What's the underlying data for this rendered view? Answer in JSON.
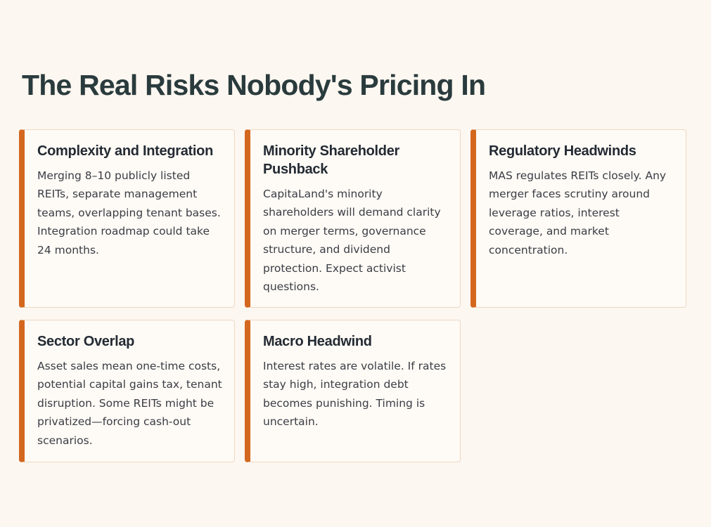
{
  "page": {
    "title": "The Real Risks Nobody's Pricing In"
  },
  "risks": [
    {
      "title": "Complexity and Integration",
      "body": "Merging 8–10 publicly listed REITs, separate management teams, overlapping tenant bases. Integration roadmap could take 24 months."
    },
    {
      "title": "Minority Shareholder Pushback",
      "body": "CapitaLand's minority shareholders will demand clarity on merger terms, governance structure, and dividend protection. Expect activist questions."
    },
    {
      "title": "Regulatory Headwinds",
      "body": "MAS regulates REITs closely. Any merger faces scrutiny around leverage ratios, interest coverage, and market concentration."
    },
    {
      "title": "Sector Overlap",
      "body": "Asset sales mean one-time costs, potential capital gains tax, tenant disruption. Some REITs might be privatized—forcing cash-out scenarios."
    },
    {
      "title": "Macro Headwind",
      "body": "Interest rates are volatile. If rates stay high, integration debt becomes punishing. Timing is uncertain."
    }
  ],
  "colors": {
    "accent": "#d4671e",
    "background": "#fdf7f1",
    "title": "#2a3b3d"
  }
}
